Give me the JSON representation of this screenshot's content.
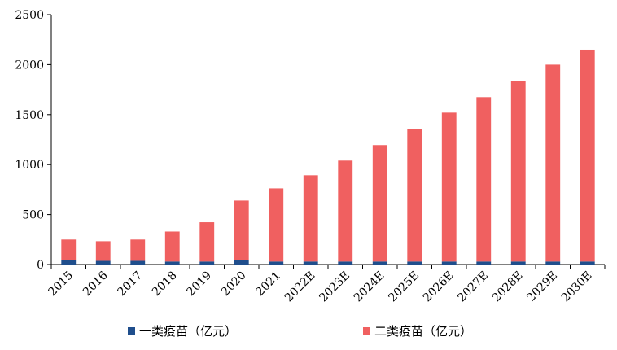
{
  "chart_data": {
    "type": "bar",
    "stacked": true,
    "categories": [
      "2015",
      "2016",
      "2017",
      "2018",
      "2019",
      "2020",
      "2021",
      "2022E",
      "2023E",
      "2024E",
      "2025E",
      "2026E",
      "2027E",
      "2028E",
      "2029E",
      "2030E"
    ],
    "series": [
      {
        "name": "一类疫苗（亿元）",
        "color": "#1F4E8C",
        "values": [
          45,
          37,
          37,
          30,
          30,
          45,
          30,
          30,
          30,
          30,
          30,
          30,
          30,
          30,
          30,
          30
        ]
      },
      {
        "name": "二类疫苗（亿元）",
        "color": "#F06060",
        "values": [
          205,
          196,
          213,
          300,
          393,
          595,
          732,
          863,
          1010,
          1165,
          1328,
          1490,
          1645,
          1805,
          1970,
          2120
        ]
      }
    ],
    "title": "",
    "xlabel": "",
    "ylabel": "",
    "ylim": [
      0,
      2500
    ],
    "yticks": [
      0,
      500,
      1000,
      1500,
      2000,
      2500
    ],
    "grid": false,
    "legend_position": "bottom"
  }
}
